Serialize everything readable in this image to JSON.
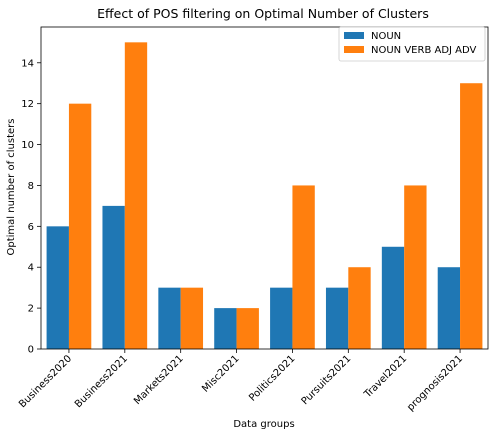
{
  "chart_data": {
    "type": "bar",
    "title": "Effect of POS filtering on Optimal Number of Clusters",
    "xlabel": "Data groups",
    "ylabel": "Optimal number of clusters",
    "categories": [
      "Business2020",
      "Business2021",
      "Markets2021",
      "Misc2021",
      "Politics2021",
      "Pursuits2021",
      "Travel2021",
      "prognosis2021"
    ],
    "series": [
      {
        "name": "NOUN",
        "color": "#1f77b4",
        "values": [
          6,
          7,
          3,
          2,
          3,
          3,
          5,
          4
        ]
      },
      {
        "name": "NOUN VERB ADJ ADV",
        "color": "#ff7f0e",
        "values": [
          12,
          15,
          3,
          2,
          8,
          4,
          8,
          13
        ]
      }
    ],
    "ylim": [
      0,
      15.75
    ],
    "yticks": [
      0,
      2,
      4,
      6,
      8,
      10,
      12,
      14
    ],
    "grid": false,
    "legend_position": "top-right"
  }
}
